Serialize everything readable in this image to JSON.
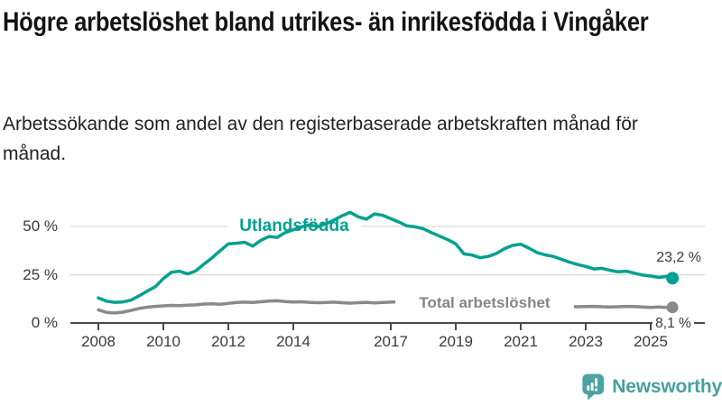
{
  "header": {
    "title": "Högre arbetslöshet bland utrikes- än inrikesfödda i Vingåker",
    "subtitle": "Arbetssökande som andel av den registerbaserade arbetskraften månad för månad."
  },
  "chart_data": {
    "type": "line",
    "unit": "%",
    "xlim": [
      2007.6,
      2026.3
    ],
    "ylim": [
      0,
      60
    ],
    "grid": "horizontal",
    "x_ticks": [
      2008,
      2010,
      2012,
      2014,
      2017,
      2019,
      2021,
      2023,
      2025
    ],
    "y_ticks": [
      {
        "value": 0,
        "label": "0 %"
      },
      {
        "value": 25,
        "label": "25 %"
      },
      {
        "value": 50,
        "label": "50 %"
      }
    ],
    "series": [
      {
        "name": "Utlandsfödda",
        "color": "#00a18f",
        "end_label": "23,2 %",
        "end_value": 23.2,
        "points": [
          [
            2008.0,
            13.0
          ],
          [
            2008.25,
            11.3
          ],
          [
            2008.5,
            10.7
          ],
          [
            2008.75,
            10.9
          ],
          [
            2009.0,
            11.8
          ],
          [
            2009.25,
            14.0
          ],
          [
            2009.5,
            16.5
          ],
          [
            2009.75,
            18.8
          ],
          [
            2010.0,
            23.0
          ],
          [
            2010.25,
            26.3
          ],
          [
            2010.5,
            26.8
          ],
          [
            2010.75,
            25.4
          ],
          [
            2011.0,
            27.0
          ],
          [
            2011.25,
            30.5
          ],
          [
            2011.5,
            33.8
          ],
          [
            2011.75,
            37.5
          ],
          [
            2012.0,
            41.0
          ],
          [
            2012.25,
            41.3
          ],
          [
            2012.5,
            41.8
          ],
          [
            2012.75,
            39.8
          ],
          [
            2013.0,
            42.8
          ],
          [
            2013.25,
            44.8
          ],
          [
            2013.5,
            44.3
          ],
          [
            2013.75,
            46.8
          ],
          [
            2014.0,
            48.3
          ],
          [
            2014.25,
            49.8
          ],
          [
            2014.5,
            50.8
          ],
          [
            2014.75,
            49.9
          ],
          [
            2015.0,
            51.3
          ],
          [
            2015.25,
            53.3
          ],
          [
            2015.5,
            55.5
          ],
          [
            2015.75,
            57.3
          ],
          [
            2016.0,
            55.0
          ],
          [
            2016.25,
            53.8
          ],
          [
            2016.5,
            56.5
          ],
          [
            2016.75,
            55.8
          ],
          [
            2017.0,
            54.0
          ],
          [
            2017.25,
            52.3
          ],
          [
            2017.5,
            50.3
          ],
          [
            2017.75,
            49.8
          ],
          [
            2018.0,
            48.8
          ],
          [
            2018.25,
            46.8
          ],
          [
            2018.5,
            45.0
          ],
          [
            2018.75,
            43.2
          ],
          [
            2019.0,
            41.0
          ],
          [
            2019.25,
            35.8
          ],
          [
            2019.5,
            35.2
          ],
          [
            2019.75,
            33.8
          ],
          [
            2020.0,
            34.5
          ],
          [
            2020.25,
            36.0
          ],
          [
            2020.5,
            38.5
          ],
          [
            2020.75,
            40.2
          ],
          [
            2021.0,
            40.8
          ],
          [
            2021.25,
            38.8
          ],
          [
            2021.5,
            36.5
          ],
          [
            2021.75,
            35.3
          ],
          [
            2022.0,
            34.5
          ],
          [
            2022.25,
            33.0
          ],
          [
            2022.5,
            31.5
          ],
          [
            2022.75,
            30.3
          ],
          [
            2023.0,
            29.3
          ],
          [
            2023.25,
            28.0
          ],
          [
            2023.5,
            28.3
          ],
          [
            2023.75,
            27.3
          ],
          [
            2024.0,
            26.5
          ],
          [
            2024.25,
            26.8
          ],
          [
            2024.5,
            25.8
          ],
          [
            2024.75,
            24.8
          ],
          [
            2025.0,
            24.3
          ],
          [
            2025.25,
            23.6
          ],
          [
            2025.5,
            24.1
          ],
          [
            2025.67,
            23.2
          ]
        ]
      },
      {
        "name": "Total arbetslöshet",
        "color": "#8a8a8a",
        "end_label": "8,1 %",
        "end_value": 8.1,
        "points": [
          [
            2008.0,
            6.8
          ],
          [
            2008.25,
            5.5
          ],
          [
            2008.5,
            5.2
          ],
          [
            2008.75,
            5.6
          ],
          [
            2009.0,
            6.5
          ],
          [
            2009.25,
            7.5
          ],
          [
            2009.5,
            8.2
          ],
          [
            2009.75,
            8.6
          ],
          [
            2010.0,
            8.9
          ],
          [
            2010.25,
            9.1
          ],
          [
            2010.5,
            9.0
          ],
          [
            2010.75,
            9.2
          ],
          [
            2011.0,
            9.4
          ],
          [
            2011.25,
            9.8
          ],
          [
            2011.5,
            9.9
          ],
          [
            2011.75,
            9.7
          ],
          [
            2012.0,
            10.2
          ],
          [
            2012.25,
            10.6
          ],
          [
            2012.5,
            10.8
          ],
          [
            2012.75,
            10.6
          ],
          [
            2013.0,
            11.0
          ],
          [
            2013.25,
            11.4
          ],
          [
            2013.5,
            11.5
          ],
          [
            2013.75,
            11.1
          ],
          [
            2014.0,
            10.9
          ],
          [
            2014.25,
            11.0
          ],
          [
            2014.5,
            10.7
          ],
          [
            2014.75,
            10.5
          ],
          [
            2015.0,
            10.6
          ],
          [
            2015.25,
            10.8
          ],
          [
            2015.5,
            10.5
          ],
          [
            2015.75,
            10.3
          ],
          [
            2016.0,
            10.5
          ],
          [
            2016.25,
            10.7
          ],
          [
            2016.5,
            10.4
          ],
          [
            2016.75,
            10.6
          ],
          [
            2017.0,
            10.8
          ],
          [
            2017.25,
            11.0
          ],
          [
            2017.5,
            10.7
          ],
          [
            2017.75,
            10.4
          ],
          [
            2018.0,
            10.1
          ],
          [
            2018.25,
            9.9
          ],
          [
            2018.5,
            9.7
          ],
          [
            2018.75,
            9.5
          ],
          [
            2019.0,
            9.4
          ],
          [
            2019.25,
            9.1
          ],
          [
            2019.5,
            8.9
          ],
          [
            2019.75,
            9.0
          ],
          [
            2020.0,
            9.3
          ],
          [
            2020.25,
            10.1
          ],
          [
            2020.5,
            10.5
          ],
          [
            2020.75,
            10.3
          ],
          [
            2021.0,
            10.1
          ],
          [
            2021.25,
            9.9
          ],
          [
            2021.5,
            9.5
          ],
          [
            2021.75,
            9.1
          ],
          [
            2022.0,
            8.9
          ],
          [
            2022.25,
            8.7
          ],
          [
            2022.5,
            8.5
          ],
          [
            2022.75,
            8.4
          ],
          [
            2023.0,
            8.5
          ],
          [
            2023.25,
            8.6
          ],
          [
            2023.5,
            8.4
          ],
          [
            2023.75,
            8.3
          ],
          [
            2024.0,
            8.4
          ],
          [
            2024.25,
            8.6
          ],
          [
            2024.5,
            8.5
          ],
          [
            2024.75,
            8.3
          ],
          [
            2025.0,
            8.1
          ],
          [
            2025.25,
            8.3
          ],
          [
            2025.5,
            8.0
          ],
          [
            2025.67,
            8.1
          ]
        ]
      }
    ]
  },
  "colors": {
    "accent_teal": "#00a18f",
    "series_gray": "#8a8a8a",
    "axis": "#4a4a4a",
    "grid": "#dadada",
    "logo": "#4ba4a0"
  },
  "logo": {
    "text": "Newsworthy"
  }
}
